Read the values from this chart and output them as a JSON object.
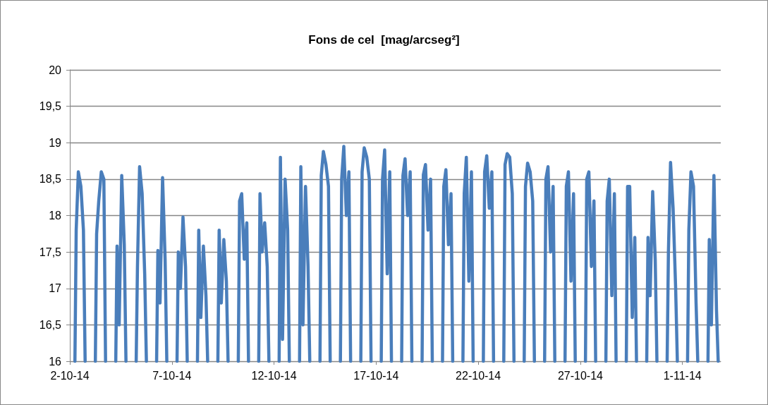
{
  "chart_data": {
    "type": "line",
    "title": "Fons de cel  [mag/arcseg²]",
    "x": [
      "--10-02T06:00",
      "--10-02T07:30",
      "--10-02T10:00",
      "--10-02T13:00",
      "--10-02T16:00",
      "--10-02T18:00",
      "--10-02T20:00",
      "--10-03T06:00",
      "--10-03T07:30",
      "--10-03T10:00",
      "--10-03T13:00",
      "--10-03T16:00",
      "--10-03T18:00",
      "--10-03T20:00",
      "--10-04T06:00",
      "--10-04T07:30",
      "--10-04T10:00",
      "--10-04T13:00",
      "--10-04T16:00",
      "--10-04T18:00",
      "--10-04T20:00",
      "--10-05T06:00",
      "--10-05T07:30",
      "--10-05T10:00",
      "--10-05T13:00",
      "--10-05T16:00",
      "--10-05T18:00",
      "--10-05T20:00",
      "--10-06T06:00",
      "--10-06T07:30",
      "--10-06T10:00",
      "--10-06T13:00",
      "--10-06T16:00",
      "--10-06T18:00",
      "--10-06T20:00",
      "--10-07T06:00",
      "--10-07T07:30",
      "--10-07T10:00",
      "--10-07T13:00",
      "--10-07T16:00",
      "--10-07T18:00",
      "--10-07T20:00",
      "--10-08T06:00",
      "--10-08T07:30",
      "--10-08T10:00",
      "--10-08T13:00",
      "--10-08T16:00",
      "--10-08T18:00",
      "--10-08T20:00",
      "--10-09T06:00",
      "--10-09T07:30",
      "--10-09T10:00",
      "--10-09T13:00",
      "--10-09T16:00",
      "--10-09T18:00",
      "--10-09T20:00",
      "--10-10T06:00",
      "--10-10T07:30",
      "--10-10T10:00",
      "--10-10T13:00",
      "--10-10T16:00",
      "--10-10T18:00",
      "--10-10T20:00",
      "--10-11T06:00",
      "--10-11T07:30",
      "--10-11T10:00",
      "--10-11T13:00",
      "--10-11T16:00",
      "--10-11T18:00",
      "--10-11T20:00",
      "--10-12T06:00",
      "--10-12T07:30",
      "--10-12T10:00",
      "--10-12T13:00",
      "--10-12T16:00",
      "--10-12T18:00",
      "--10-12T20:00",
      "--10-13T06:00",
      "--10-13T07:30",
      "--10-13T10:00",
      "--10-13T13:00",
      "--10-13T16:00",
      "--10-13T18:00",
      "--10-13T20:00",
      "--10-14T06:00",
      "--10-14T07:30",
      "--10-14T10:00",
      "--10-14T13:00",
      "--10-14T16:00",
      "--10-14T18:00",
      "--10-14T20:00",
      "--10-15T06:00",
      "--10-15T07:30",
      "--10-15T10:00",
      "--10-15T13:00",
      "--10-15T16:00",
      "--10-15T18:00",
      "--10-15T20:00",
      "--10-16T06:00",
      "--10-16T07:30",
      "--10-16T10:00",
      "--10-16T13:00",
      "--10-16T16:00",
      "--10-16T18:00",
      "--10-16T20:00",
      "--10-17T06:00",
      "--10-17T07:30",
      "--10-17T10:00",
      "--10-17T13:00",
      "--10-17T16:00",
      "--10-17T18:00",
      "--10-17T20:00",
      "--10-18T06:00",
      "--10-18T07:30",
      "--10-18T10:00",
      "--10-18T13:00",
      "--10-18T16:00",
      "--10-18T18:00",
      "--10-18T20:00",
      "--10-19T06:00",
      "--10-19T07:30",
      "--10-19T10:00",
      "--10-19T13:00",
      "--10-19T16:00",
      "--10-19T18:00",
      "--10-19T20:00",
      "--10-20T06:00",
      "--10-20T07:30",
      "--10-20T10:00",
      "--10-20T13:00",
      "--10-20T16:00",
      "--10-20T18:00",
      "--10-20T20:00",
      "--10-21T06:00",
      "--10-21T07:30",
      "--10-21T10:00",
      "--10-21T13:00",
      "--10-21T16:00",
      "--10-21T18:00",
      "--10-21T20:00",
      "--10-22T06:00",
      "--10-22T07:30",
      "--10-22T10:00",
      "--10-22T13:00",
      "--10-22T16:00",
      "--10-22T18:00",
      "--10-22T20:00",
      "--10-23T06:00",
      "--10-23T07:30",
      "--10-23T10:00",
      "--10-23T13:00",
      "--10-23T16:00",
      "--10-23T18:00",
      "--10-23T20:00",
      "--10-24T06:00",
      "--10-24T07:30",
      "--10-24T10:00",
      "--10-24T13:00",
      "--10-24T16:00",
      "--10-24T18:00",
      "--10-24T20:00",
      "--10-25T06:00",
      "--10-25T07:30",
      "--10-25T10:00",
      "--10-25T13:00",
      "--10-25T16:00",
      "--10-25T18:00",
      "--10-25T20:00",
      "--10-26T06:00",
      "--10-26T07:30",
      "--10-26T10:00",
      "--10-26T13:00",
      "--10-26T16:00",
      "--10-26T18:00",
      "--10-26T20:00",
      "--10-27T06:00",
      "--10-27T07:30",
      "--10-27T10:00",
      "--10-27T13:00",
      "--10-27T16:00",
      "--10-27T18:00",
      "--10-27T20:00",
      "--10-28T06:00",
      "--10-28T07:30",
      "--10-28T10:00",
      "--10-28T13:00",
      "--10-28T16:00",
      "--10-28T18:00",
      "--10-28T20:00",
      "--10-29T06:00",
      "--10-29T07:30",
      "--10-29T10:00",
      "--10-29T13:00",
      "--10-29T16:00",
      "--10-29T18:00",
      "--10-29T20:00",
      "--10-30T06:00",
      "--10-30T07:30",
      "--10-30T10:00",
      "--10-30T13:00",
      "--10-30T16:00",
      "--10-30T18:00",
      "--10-30T20:00",
      "--10-31T06:00",
      "--10-31T07:30",
      "--10-31T10:00",
      "--10-31T13:00",
      "--10-31T16:00",
      "--10-31T18:00",
      "--10-31T20:00",
      "--11-01T06:00",
      "--11-01T07:30",
      "--11-01T10:00",
      "--11-01T13:00",
      "--11-01T16:00",
      "--11-01T18:00",
      "--11-01T20:00",
      "--11-02T06:00",
      "--11-02T07:30",
      "--11-02T10:00",
      "--11-02T13:00",
      "--11-02T16:00",
      "--11-02T18:00"
    ],
    "series": [
      {
        "color": "#4a7ebb",
        "values": [
          16,
          17.8,
          18.6,
          18.4,
          17.8,
          16,
          null,
          16,
          17.75,
          18.2,
          18.6,
          18.5,
          16,
          null,
          16,
          17.58,
          16.5,
          18.55,
          17.6,
          16,
          null,
          16,
          17.3,
          18.67,
          18.3,
          17.2,
          16,
          null,
          16,
          17.52,
          16.8,
          18.52,
          17.4,
          16,
          null,
          16,
          17.5,
          17.0,
          17.98,
          17.3,
          16,
          null,
          16,
          17.8,
          16.6,
          17.58,
          16.9,
          16,
          null,
          16,
          17.8,
          16.8,
          17.67,
          17.1,
          16,
          null,
          16,
          18.2,
          18.3,
          17.4,
          17.9,
          16,
          null,
          16,
          18.3,
          17.5,
          17.9,
          17.3,
          16,
          null,
          16,
          18.8,
          16.3,
          18.5,
          17.8,
          16,
          null,
          16,
          18.67,
          16.5,
          18.4,
          17.3,
          16,
          null,
          16,
          18.55,
          18.88,
          18.7,
          18.4,
          16,
          null,
          16,
          18.5,
          18.95,
          18.0,
          18.6,
          16,
          null,
          16,
          18.6,
          18.93,
          18.8,
          18.5,
          16,
          null,
          16,
          18.5,
          18.9,
          17.2,
          18.6,
          16,
          null,
          16,
          18.55,
          18.78,
          18.0,
          18.6,
          16,
          null,
          16,
          18.56,
          18.7,
          17.8,
          18.5,
          16,
          null,
          16,
          18.4,
          18.63,
          17.6,
          18.3,
          16,
          null,
          16,
          18.3,
          18.8,
          17.1,
          18.6,
          16,
          null,
          16,
          18.6,
          18.82,
          18.1,
          18.6,
          16,
          null,
          16,
          18.7,
          18.85,
          18.8,
          18.3,
          16,
          null,
          16,
          18.4,
          18.72,
          18.6,
          18.2,
          16,
          null,
          16,
          18.5,
          18.67,
          17.5,
          18.4,
          16,
          null,
          16,
          18.4,
          18.6,
          17.1,
          18.3,
          16,
          null,
          16,
          18.5,
          18.6,
          17.3,
          18.2,
          16,
          null,
          16,
          18.2,
          18.5,
          16.9,
          18.3,
          16,
          null,
          16,
          18.4,
          18.4,
          16.6,
          17.7,
          16,
          null,
          16,
          17.7,
          16.9,
          18.33,
          17.4,
          16,
          null,
          16,
          17.5,
          18.73,
          18.1,
          17.0,
          16,
          null,
          16,
          17.8,
          18.6,
          18.4,
          16.8,
          16,
          null,
          16,
          17.67,
          16.5,
          18.55,
          16.7,
          16
        ]
      }
    ],
    "xlim": [
      "--10-02",
      "--11-02T21:00"
    ],
    "xticks": [
      {
        "value": "--10-02",
        "label": "2-10-14"
      },
      {
        "value": "--10-07",
        "label": "7-10-14"
      },
      {
        "value": "--10-12",
        "label": "12-10-14"
      },
      {
        "value": "--10-17",
        "label": "17-10-14"
      },
      {
        "value": "--10-22",
        "label": "22-10-14"
      },
      {
        "value": "--10-27",
        "label": "27-10-14"
      },
      {
        "value": "--11-01",
        "label": "1-11-14"
      }
    ],
    "ylim": [
      16,
      20
    ],
    "yticks": [
      16,
      {
        "value": 16.5,
        "label": "16,5"
      },
      17,
      {
        "value": 17.5,
        "label": "17,5"
      },
      18,
      {
        "value": 18.5,
        "label": "18,5"
      },
      19,
      {
        "value": 19.5,
        "label": "19,5"
      },
      20
    ],
    "grid": "y",
    "marker": "none",
    "line_style": "solid"
  }
}
